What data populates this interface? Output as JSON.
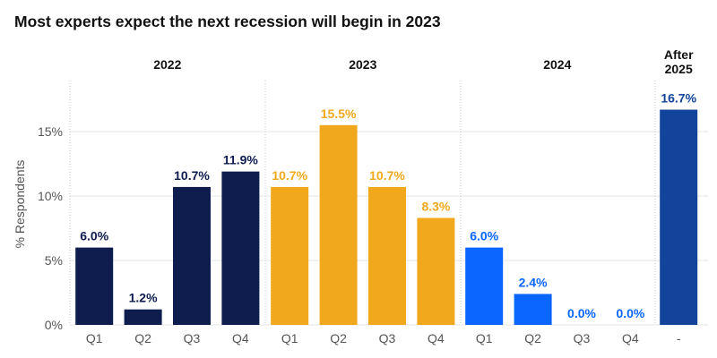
{
  "title": "Most experts expect the next recession will begin in 2023",
  "colors": {
    "y2022": "#0e1c4e",
    "y2023": "#f2a81d",
    "y2024": "#0a66ff",
    "after2025": "#12449b"
  },
  "chart_data": {
    "type": "bar",
    "title": "Most experts expect the next recession will begin in 2023",
    "xlabel": "",
    "ylabel": "% Respondents",
    "ylim": [
      0,
      19
    ],
    "yticks": [
      0,
      5,
      10,
      15
    ],
    "ytick_labels": [
      "0%",
      "5%",
      "10%",
      "15%"
    ],
    "grid": "horizontal",
    "groups": [
      {
        "label": "2022",
        "color": "#0e1c4e",
        "categories": [
          "Q1",
          "Q2",
          "Q3",
          "Q4"
        ],
        "values": [
          6.0,
          1.2,
          10.7,
          11.9
        ],
        "value_labels": [
          "6.0%",
          "1.2%",
          "10.7%",
          "11.9%"
        ]
      },
      {
        "label": "2023",
        "color": "#f2a81d",
        "categories": [
          "Q1",
          "Q2",
          "Q3",
          "Q4"
        ],
        "values": [
          10.7,
          15.5,
          10.7,
          8.3
        ],
        "value_labels": [
          "10.7%",
          "15.5%",
          "10.7%",
          "8.3%"
        ]
      },
      {
        "label": "2024",
        "color": "#0a66ff",
        "categories": [
          "Q1",
          "Q2",
          "Q3",
          "Q4"
        ],
        "values": [
          6.0,
          2.4,
          0.0,
          0.0
        ],
        "value_labels": [
          "6.0%",
          "2.4%",
          "0.0%",
          "0.0%"
        ]
      },
      {
        "label": "After\n2025",
        "color": "#12449b",
        "categories": [
          "-"
        ],
        "values": [
          16.7
        ],
        "value_labels": [
          "16.7%"
        ]
      }
    ]
  }
}
